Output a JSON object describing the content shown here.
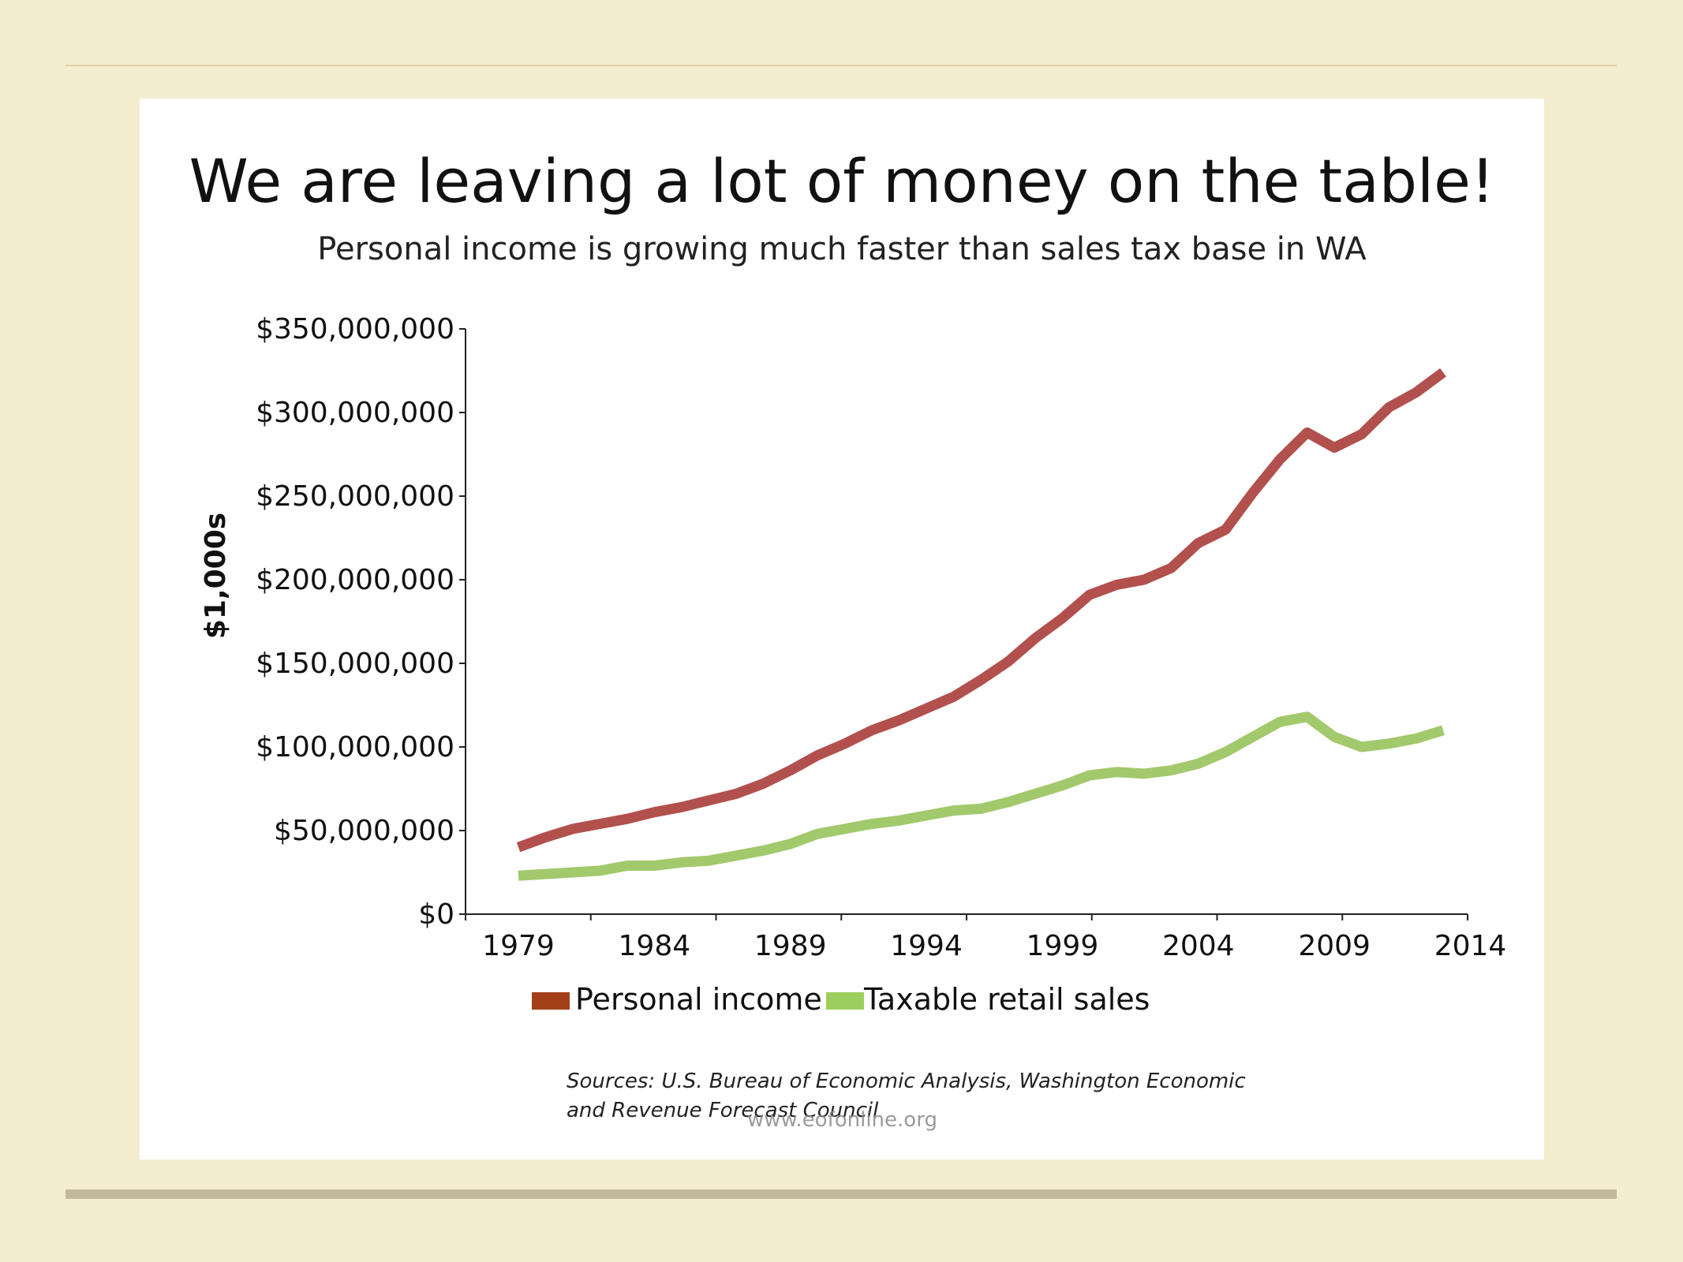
{
  "slide": {
    "title": "We are leaving a lot of money on the table!",
    "subtitle": "Personal income is growing much faster than sales tax base in WA",
    "source": "Sources: U.S. Bureau of Economic Analysis, Washington Economic and Revenue Forecast Council",
    "watermark": "www.eofonline.org"
  },
  "chart_data": {
    "type": "line",
    "title": "We are leaving a lot of money on the table!",
    "subtitle": "Personal income is growing much faster than sales tax base in WA",
    "xlabel": "",
    "ylabel": "$1,000s",
    "xlim": [
      1979,
      2014
    ],
    "ylim": [
      0,
      350000000
    ],
    "grid": false,
    "legend_position": "bottom",
    "x_ticks": [
      1979,
      1984,
      1989,
      1994,
      1999,
      2004,
      2009,
      2014
    ],
    "y_ticks": [
      {
        "value": 0,
        "label": "$0"
      },
      {
        "value": 50000000,
        "label": "$50,000,000"
      },
      {
        "value": 100000000,
        "label": "$100,000,000"
      },
      {
        "value": 150000000,
        "label": "$150,000,000"
      },
      {
        "value": 200000000,
        "label": "$200,000,000"
      },
      {
        "value": 250000000,
        "label": "$250,000,000"
      },
      {
        "value": 300000000,
        "label": "$300,000,000"
      },
      {
        "value": 350000000,
        "label": "$350,000,000"
      }
    ],
    "x": [
      1979,
      1980,
      1981,
      1982,
      1983,
      1984,
      1985,
      1986,
      1987,
      1988,
      1989,
      1990,
      1991,
      1992,
      1993,
      1994,
      1995,
      1996,
      1997,
      1998,
      1999,
      2000,
      2001,
      2002,
      2003,
      2004,
      2005,
      2006,
      2007,
      2008,
      2009,
      2010,
      2011,
      2012,
      2013
    ],
    "series": [
      {
        "name": "Personal income",
        "color": "#b2504d",
        "legend_color": "#a3401a",
        "values": [
          40000000,
          46000000,
          51000000,
          54000000,
          57000000,
          61000000,
          64000000,
          68000000,
          72000000,
          78000000,
          86000000,
          95000000,
          102000000,
          110000000,
          116000000,
          123000000,
          130000000,
          140000000,
          151000000,
          165000000,
          177000000,
          191000000,
          197000000,
          200000000,
          207000000,
          222000000,
          230000000,
          252000000,
          272000000,
          288000000,
          279000000,
          287000000,
          303000000,
          312000000,
          324000000
        ]
      },
      {
        "name": "Taxable retail sales",
        "color": "#a2c96c",
        "legend_color": "#9dcf5e",
        "values": [
          23000000,
          24000000,
          25000000,
          26000000,
          29000000,
          29000000,
          31000000,
          32000000,
          35000000,
          38000000,
          42000000,
          48000000,
          51000000,
          54000000,
          56000000,
          59000000,
          62000000,
          63000000,
          67000000,
          72000000,
          77000000,
          83000000,
          85000000,
          84000000,
          86000000,
          90000000,
          97000000,
          106000000,
          115000000,
          118000000,
          106000000,
          100000000,
          102000000,
          105000000,
          110000000
        ]
      }
    ]
  }
}
